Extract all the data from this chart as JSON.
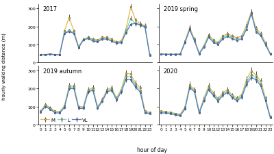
{
  "hours": [
    0,
    1,
    2,
    3,
    4,
    5,
    6,
    7,
    8,
    9,
    10,
    11,
    12,
    13,
    14,
    15,
    16,
    17,
    18,
    19,
    20,
    21,
    22,
    23
  ],
  "colors": {
    "M": "#e8b84b",
    "L": "#7dd4b0",
    "VL": "#5578c8"
  },
  "line_width": 0.9,
  "marker_size": 1.8,
  "panels": [
    {
      "title": "2017",
      "M": [
        45,
        45,
        48,
        45,
        45,
        175,
        250,
        175,
        90,
        130,
        140,
        130,
        125,
        140,
        140,
        130,
        115,
        120,
        185,
        310,
        235,
        215,
        205,
        45
      ],
      "L": [
        44,
        44,
        47,
        44,
        44,
        168,
        178,
        168,
        85,
        128,
        138,
        125,
        120,
        135,
        135,
        122,
        110,
        115,
        172,
        245,
        215,
        205,
        195,
        42
      ],
      "VL": [
        43,
        43,
        46,
        43,
        43,
        162,
        172,
        162,
        82,
        125,
        133,
        120,
        115,
        130,
        130,
        118,
        106,
        110,
        165,
        212,
        218,
        210,
        198,
        40
      ],
      "M_err": [
        3,
        3,
        3,
        3,
        3,
        12,
        18,
        10,
        6,
        8,
        10,
        8,
        7,
        8,
        9,
        7,
        7,
        7,
        12,
        18,
        15,
        13,
        13,
        4
      ],
      "L_err": [
        3,
        3,
        3,
        3,
        3,
        10,
        10,
        8,
        5,
        7,
        8,
        7,
        6,
        7,
        8,
        6,
        6,
        6,
        10,
        13,
        12,
        11,
        11,
        3
      ],
      "VL_err": [
        2,
        2,
        2,
        2,
        2,
        8,
        9,
        7,
        4,
        6,
        7,
        6,
        5,
        6,
        7,
        5,
        5,
        5,
        9,
        11,
        11,
        10,
        10,
        3
      ],
      "ylim": [
        0,
        325
      ]
    },
    {
      "title": "2019 spring",
      "M": [
        48,
        47,
        47,
        47,
        48,
        120,
        195,
        130,
        52,
        95,
        155,
        125,
        112,
        148,
        160,
        148,
        138,
        148,
        210,
        280,
        190,
        162,
        110,
        50
      ],
      "L": [
        47,
        46,
        46,
        46,
        47,
        115,
        188,
        125,
        50,
        90,
        148,
        118,
        106,
        140,
        152,
        140,
        130,
        140,
        198,
        268,
        178,
        155,
        104,
        48
      ],
      "VL": [
        46,
        45,
        45,
        45,
        46,
        110,
        182,
        120,
        48,
        85,
        140,
        112,
        100,
        132,
        145,
        132,
        122,
        132,
        185,
        275,
        170,
        148,
        98,
        46
      ],
      "M_err": [
        3,
        3,
        3,
        3,
        3,
        10,
        16,
        10,
        4,
        7,
        11,
        9,
        7,
        10,
        11,
        9,
        9,
        11,
        16,
        18,
        14,
        11,
        9,
        4
      ],
      "L_err": [
        3,
        3,
        3,
        3,
        3,
        8,
        12,
        8,
        3,
        5,
        9,
        7,
        5,
        8,
        9,
        7,
        7,
        9,
        12,
        14,
        11,
        9,
        7,
        3
      ],
      "VL_err": [
        2,
        2,
        2,
        2,
        2,
        7,
        10,
        7,
        3,
        4,
        7,
        6,
        4,
        7,
        8,
        6,
        6,
        7,
        10,
        13,
        9,
        8,
        6,
        3
      ],
      "ylim": [
        0,
        325
      ]
    },
    {
      "title": "2019 autumn",
      "M": [
        78,
        112,
        95,
        75,
        72,
        105,
        215,
        215,
        100,
        100,
        195,
        205,
        100,
        140,
        195,
        205,
        148,
        195,
        285,
        280,
        230,
        205,
        75,
        68
      ],
      "L": [
        74,
        106,
        90,
        70,
        68,
        100,
        208,
        208,
        95,
        95,
        188,
        198,
        95,
        135,
        188,
        198,
        142,
        188,
        268,
        265,
        218,
        192,
        70,
        64
      ],
      "VL": [
        70,
        100,
        85,
        65,
        64,
        95,
        200,
        200,
        90,
        90,
        182,
        190,
        90,
        130,
        182,
        190,
        136,
        182,
        252,
        250,
        208,
        180,
        65,
        60
      ],
      "M_err": [
        6,
        10,
        8,
        6,
        6,
        9,
        16,
        16,
        8,
        9,
        16,
        17,
        9,
        12,
        16,
        17,
        12,
        16,
        20,
        19,
        17,
        15,
        6,
        5
      ],
      "L_err": [
        5,
        8,
        7,
        5,
        5,
        8,
        13,
        13,
        7,
        8,
        14,
        14,
        8,
        10,
        14,
        14,
        11,
        14,
        17,
        16,
        15,
        13,
        5,
        4
      ],
      "VL_err": [
        4,
        7,
        6,
        4,
        4,
        7,
        11,
        11,
        6,
        7,
        12,
        12,
        7,
        9,
        12,
        12,
        10,
        12,
        15,
        14,
        13,
        11,
        4,
        3
      ],
      "ylim": [
        0,
        325
      ]
    },
    {
      "title": "2020",
      "M": [
        75,
        72,
        68,
        62,
        58,
        98,
        220,
        195,
        72,
        148,
        215,
        175,
        145,
        178,
        195,
        162,
        148,
        168,
        252,
        298,
        275,
        242,
        148,
        45
      ],
      "L": [
        70,
        68,
        64,
        58,
        54,
        92,
        212,
        188,
        68,
        140,
        205,
        168,
        138,
        170,
        188,
        155,
        140,
        160,
        238,
        278,
        260,
        228,
        140,
        42
      ],
      "VL": [
        65,
        64,
        60,
        54,
        50,
        86,
        205,
        182,
        64,
        132,
        195,
        160,
        130,
        162,
        180,
        148,
        132,
        152,
        225,
        262,
        248,
        215,
        132,
        38
      ],
      "M_err": [
        6,
        6,
        5,
        4,
        4,
        9,
        18,
        15,
        6,
        12,
        17,
        14,
        12,
        14,
        16,
        13,
        12,
        14,
        19,
        20,
        20,
        18,
        12,
        4
      ],
      "L_err": [
        5,
        5,
        4,
        3,
        3,
        7,
        14,
        12,
        5,
        10,
        14,
        11,
        10,
        12,
        14,
        11,
        10,
        12,
        16,
        17,
        17,
        15,
        10,
        3
      ],
      "VL_err": [
        4,
        4,
        3,
        2,
        2,
        6,
        12,
        10,
        4,
        8,
        12,
        9,
        8,
        10,
        12,
        9,
        8,
        10,
        14,
        15,
        15,
        13,
        8,
        3
      ],
      "ylim": [
        0,
        325
      ]
    }
  ],
  "xlabel": "hour of day",
  "ylabel": "hourly walking distance (m)",
  "legend_labels": [
    "M",
    "L",
    "VL"
  ],
  "yticks": [
    0,
    100,
    200,
    300
  ],
  "bg_color": "#ffffff",
  "panel_bg": "#ffffff"
}
